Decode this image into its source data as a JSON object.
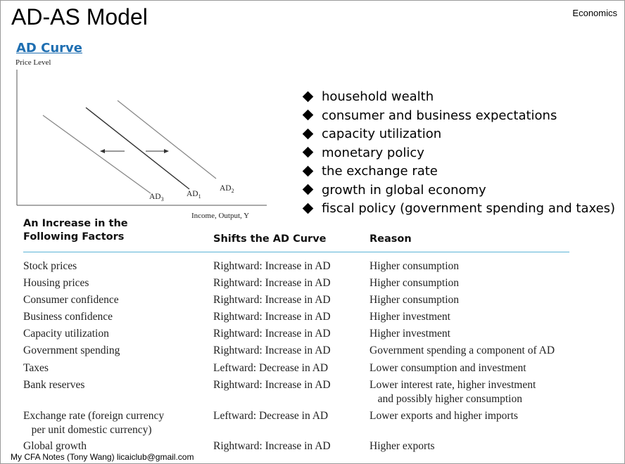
{
  "title": "AD-AS Model",
  "topic": "Economics",
  "subtitle": "AD Curve",
  "chart": {
    "y_axis_label": "Price Level",
    "x_axis_label": "Income, Output, Y",
    "curve_labels": [
      "AD3",
      "AD1",
      "AD2"
    ]
  },
  "factors": [
    "household wealth",
    "consumer and business expectations",
    "capacity utilization",
    "monetary policy",
    "the exchange rate",
    "growth in global economy",
    "fiscal policy (government spending and taxes)"
  ],
  "table": {
    "headers": [
      "An Increase in the\nFollowing Factors",
      "Shifts the AD Curve",
      "Reason"
    ],
    "rows": [
      {
        "factor": "Stock prices",
        "shift": "Rightward: Increase in AD",
        "reason": "Higher consumption"
      },
      {
        "factor": "Housing prices",
        "shift": "Rightward: Increase in AD",
        "reason": "Higher consumption"
      },
      {
        "factor": "Consumer confidence",
        "shift": "Rightward: Increase in AD",
        "reason": "Higher consumption"
      },
      {
        "factor": "Business confidence",
        "shift": "Rightward: Increase in AD",
        "reason": "Higher investment"
      },
      {
        "factor": "Capacity utilization",
        "shift": "Rightward: Increase in AD",
        "reason": "Higher investment"
      },
      {
        "factor": "Government spending",
        "shift": "Rightward: Increase in AD",
        "reason": "Government spending a component of AD"
      },
      {
        "factor": "Taxes",
        "shift": "Leftward: Decrease in AD",
        "reason": "Lower consumption and investment"
      },
      {
        "factor": "Bank reserves",
        "shift": "Rightward: Increase in AD",
        "reason": "Lower interest rate, higher investment\n   and possibly higher consumption"
      },
      {
        "factor": "Exchange rate (foreign currency\n   per unit domestic currency)",
        "shift": "Leftward: Decrease in AD",
        "reason": "Lower exports and higher imports"
      },
      {
        "factor": "Global growth",
        "shift": "Rightward: Increase in AD",
        "reason": "Higher exports"
      }
    ]
  },
  "footer": "My CFA Notes (Tony Wang)  licaiclub@gmail.com"
}
